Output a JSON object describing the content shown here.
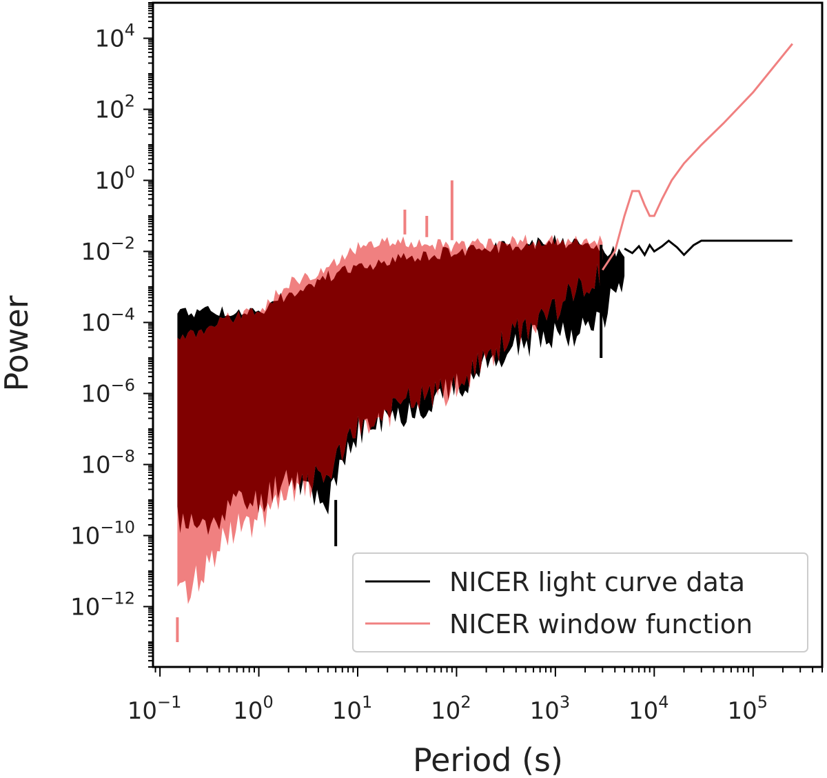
{
  "chart_data": {
    "type": "line",
    "title": "",
    "xlabel": "Period (s)",
    "ylabel": "Power",
    "xscale": "log",
    "yscale": "log",
    "xlim": [
      0.085,
      500000
    ],
    "ylim": [
      2e-14,
      100000.0
    ],
    "grid": false,
    "legend_position": "lower-right",
    "x_ticks": [
      {
        "base": "10",
        "exp": "−1"
      },
      {
        "base": "10",
        "exp": "0"
      },
      {
        "base": "10",
        "exp": "1"
      },
      {
        "base": "10",
        "exp": "2"
      },
      {
        "base": "10",
        "exp": "3"
      },
      {
        "base": "10",
        "exp": "4"
      },
      {
        "base": "10",
        "exp": "5"
      }
    ],
    "y_ticks": [
      {
        "base": "10",
        "exp": "4"
      },
      {
        "base": "10",
        "exp": "2"
      },
      {
        "base": "10",
        "exp": "0"
      },
      {
        "base": "10",
        "exp": "−2"
      },
      {
        "base": "10",
        "exp": "−4"
      },
      {
        "base": "10",
        "exp": "−6"
      },
      {
        "base": "10",
        "exp": "−8"
      },
      {
        "base": "10",
        "exp": "−10"
      },
      {
        "base": "10",
        "exp": "−12"
      }
    ],
    "series": [
      {
        "name": "NICER light curve data",
        "color": "#000000",
        "envelope": {
          "x": [
            0.15,
            0.3,
            0.5,
            1,
            2,
            5,
            10,
            30,
            100,
            300,
            1000,
            2000,
            3000,
            5000
          ],
          "ymin": [
            1e-10,
            5e-11,
            3e-10,
            3e-10,
            2e-09,
            3e-10,
            3e-08,
            1e-07,
            5e-07,
            5e-06,
            2e-05,
            2e-05,
            5e-05,
            0.001
          ],
          "ymax": [
            0.0003,
            0.0003,
            0.0003,
            0.0003,
            0.001,
            0.003,
            0.005,
            0.01,
            0.015,
            0.02,
            0.03,
            0.02,
            0.015,
            0.015
          ]
        },
        "spikes": [
          {
            "x": 6,
            "y": 5e-11
          },
          {
            "x": 2900,
            "y": 1e-05
          }
        ],
        "tail": {
          "x": [
            5000,
            6000,
            7000,
            8000,
            9000,
            10000,
            12000,
            14000,
            17000,
            20000,
            25000,
            30000,
            50000,
            100000,
            250000
          ],
          "y": [
            0.012,
            0.009,
            0.014,
            0.008,
            0.015,
            0.01,
            0.014,
            0.02,
            0.013,
            0.008,
            0.015,
            0.02,
            0.02,
            0.02,
            0.02
          ]
        }
      },
      {
        "name": "NICER window function",
        "color": "#f08080",
        "envelope": {
          "x": [
            0.15,
            0.3,
            0.5,
            1,
            2,
            5,
            10,
            30,
            100,
            300,
            1000,
            3000
          ],
          "ymin": [
            5e-13,
            5e-12,
            5e-11,
            1e-10,
            5e-10,
            2e-09,
            3e-08,
            2e-07,
            5e-07,
            1e-05,
            0.0001,
            0.001
          ],
          "ymax": [
            5e-05,
            0.0001,
            0.0002,
            0.0003,
            0.002,
            0.005,
            0.02,
            0.03,
            0.02,
            0.03,
            0.03,
            0.03
          ]
        },
        "spikes": [
          {
            "x": 0.15,
            "y": 1e-13
          },
          {
            "x": 30,
            "y": 0.15
          },
          {
            "x": 50,
            "y": 0.1
          },
          {
            "x": 90,
            "y": 1.0
          }
        ],
        "tail": {
          "x": [
            3000,
            4000,
            5000,
            6000,
            7000,
            8000,
            9000,
            10000,
            12000,
            15000,
            20000,
            30000,
            50000,
            100000,
            250000
          ],
          "y": [
            0.003,
            0.01,
            0.1,
            0.5,
            0.5,
            0.2,
            0.1,
            0.1,
            0.3,
            1.0,
            3.0,
            10,
            40,
            300,
            7000
          ]
        }
      }
    ],
    "overlap_color": "#800000"
  }
}
